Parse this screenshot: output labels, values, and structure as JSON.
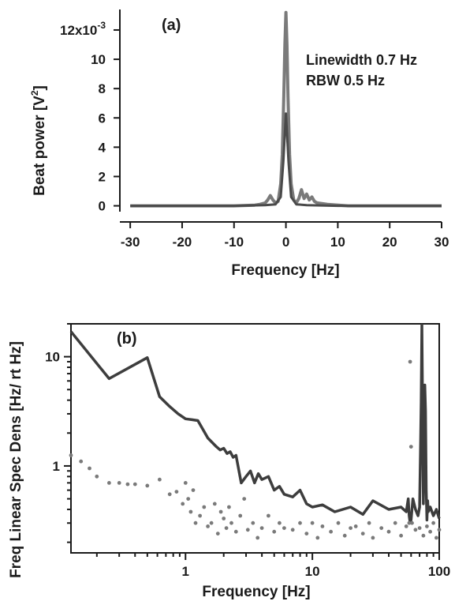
{
  "chart_data": [
    {
      "type": "line",
      "panel_label": "(a)",
      "xlabel": "Frequency [Hz]",
      "ylabel": "Beat power [V",
      "ylabel_sup": "2",
      "ylabel_close": "]",
      "xlim": [
        -32,
        30
      ],
      "ylim": [
        -0.0004,
        0.0134
      ],
      "x_ticks": [
        {
          "value": -30,
          "label": "-30"
        },
        {
          "value": -20,
          "label": "-20"
        },
        {
          "value": -10,
          "label": "-10"
        },
        {
          "value": 0,
          "label": "0"
        },
        {
          "value": 10,
          "label": "10"
        },
        {
          "value": 20,
          "label": "20"
        },
        {
          "value": 30,
          "label": "30"
        }
      ],
      "y_ticks": [
        {
          "value": 0,
          "label": "0"
        },
        {
          "value": 0.002,
          "label": "2"
        },
        {
          "value": 0.004,
          "label": "4"
        },
        {
          "value": 0.006,
          "label": "6"
        },
        {
          "value": 0.008,
          "label": "8"
        },
        {
          "value": 0.01,
          "label": "10"
        },
        {
          "value": 0.012,
          "label": "12x10",
          "sup": "-3"
        }
      ],
      "annotations": [
        "Linewidth 0.7 Hz",
        "RBW 0.5 Hz"
      ],
      "grid": false,
      "series": [
        {
          "color": "#7a7a7a",
          "x": [
            -30,
            -10,
            -6,
            -5,
            -4,
            -3.5,
            -3,
            -2.5,
            -2,
            -1.5,
            -1,
            -0.7,
            -0.4,
            -0.2,
            0,
            0.2,
            0.4,
            0.7,
            1,
            1.5,
            2,
            2.5,
            3,
            3.5,
            4,
            4.5,
            5,
            5.5,
            6,
            8,
            12,
            30
          ],
          "y": [
            0,
            0,
            5e-05,
            0.0001,
            0.0002,
            0.0004,
            0.0007,
            0.0004,
            0.0002,
            0.0003,
            0.0015,
            0.0035,
            0.0075,
            0.011,
            0.0132,
            0.011,
            0.0075,
            0.0035,
            0.0015,
            0.0004,
            0.0002,
            0.0005,
            0.0011,
            0.0005,
            0.0008,
            0.0004,
            0.0006,
            0.0003,
            0.0002,
            0.0001,
            0,
            0
          ]
        },
        {
          "color": "#4a4a4a",
          "x": [
            -30,
            -10,
            -4,
            -2,
            -1,
            -0.5,
            0,
            0.5,
            1,
            2,
            4,
            10,
            30
          ],
          "y": [
            0,
            0,
            5e-05,
            0.0001,
            0.0006,
            0.003,
            0.0063,
            0.003,
            0.0006,
            0.0001,
            5e-05,
            0,
            0
          ]
        }
      ]
    },
    {
      "type": "line",
      "panel_label": "(b)",
      "xlabel": "Frequency [Hz]",
      "ylabel": "Freq Linear Spec Dens [Hz/ rt Hz]",
      "xscale": "log",
      "yscale": "log",
      "xlim": [
        0.125,
        100
      ],
      "ylim": [
        0.16,
        20
      ],
      "x_ticks": [
        {
          "value": 1,
          "label": "1"
        },
        {
          "value": 10,
          "label": "10"
        },
        {
          "value": 100,
          "label": "100"
        }
      ],
      "y_ticks": [
        {
          "value": 1,
          "label": "1"
        },
        {
          "value": 10,
          "label": "10"
        }
      ],
      "grid": false,
      "series": [
        {
          "style": "line",
          "color": "#3d3d3d",
          "x": [
            0.125,
            0.25,
            0.5,
            0.625,
            0.75,
            0.875,
            1.0,
            1.125,
            1.25,
            1.5,
            1.75,
            1.875,
            2.0,
            2.125,
            2.25,
            2.375,
            2.5,
            2.75,
            3.0,
            3.25,
            3.5,
            3.75,
            4.0,
            4.5,
            5.0,
            5.5,
            6.0,
            7.0,
            8.0,
            9.0,
            10,
            12,
            15,
            20,
            25,
            30,
            40,
            50,
            55,
            57,
            58,
            59,
            60,
            62,
            65,
            68,
            70,
            71,
            72,
            73,
            75,
            77,
            78,
            79,
            80,
            81,
            82,
            85,
            90,
            95,
            100
          ],
          "y": [
            17,
            6.3,
            9.8,
            4.3,
            3.5,
            3.0,
            2.7,
            2.65,
            2.6,
            1.8,
            1.5,
            1.4,
            1.45,
            1.3,
            1.35,
            1.2,
            1.25,
            0.7,
            0.8,
            0.9,
            0.7,
            0.85,
            0.75,
            0.8,
            0.6,
            0.65,
            0.55,
            0.52,
            0.6,
            0.45,
            0.42,
            0.44,
            0.38,
            0.42,
            0.36,
            0.48,
            0.4,
            0.42,
            0.38,
            0.5,
            0.35,
            0.3,
            0.32,
            0.5,
            0.4,
            0.35,
            0.42,
            1.2,
            3.8,
            19.5,
            0.45,
            5.5,
            3.2,
            0.6,
            0.32,
            0.48,
            0.38,
            0.42,
            0.35,
            0.4,
            0.33
          ]
        },
        {
          "style": "dots",
          "color": "#7a7a7a",
          "x": [
            0.125,
            0.15,
            0.175,
            0.2,
            0.25,
            0.3,
            0.35,
            0.4,
            0.5,
            0.625,
            0.75,
            0.85,
            0.95,
            1.0,
            1.05,
            1.1,
            1.15,
            1.2,
            1.3,
            1.4,
            1.5,
            1.6,
            1.7,
            1.8,
            1.9,
            2.0,
            2.1,
            2.2,
            2.3,
            2.5,
            2.7,
            2.9,
            3.1,
            3.4,
            3.7,
            4.0,
            4.5,
            5.0,
            5.5,
            6.0,
            7.0,
            8.0,
            9.0,
            10,
            11,
            12,
            14,
            16,
            18,
            20,
            22,
            25,
            28,
            30,
            35,
            40,
            45,
            50,
            55,
            58,
            59,
            60,
            61,
            65,
            70,
            75,
            80,
            85,
            90,
            95,
            100
          ],
          "y": [
            1.25,
            1.1,
            0.95,
            0.8,
            0.7,
            0.7,
            0.68,
            0.68,
            0.66,
            0.75,
            0.55,
            0.58,
            0.45,
            0.7,
            0.5,
            0.38,
            0.6,
            0.3,
            0.35,
            0.42,
            0.28,
            0.3,
            0.45,
            0.24,
            0.38,
            0.33,
            0.27,
            0.42,
            0.3,
            0.25,
            0.35,
            0.5,
            0.26,
            0.3,
            0.22,
            0.27,
            0.35,
            0.25,
            0.3,
            0.27,
            0.26,
            0.3,
            0.24,
            0.3,
            0.22,
            0.28,
            0.25,
            0.3,
            0.23,
            0.27,
            0.28,
            0.24,
            0.3,
            0.22,
            0.27,
            0.25,
            0.3,
            0.23,
            0.28,
            0.3,
            9,
            1.5,
            0.3,
            0.26,
            0.27,
            0.23,
            0.28,
            0.25,
            0.3,
            0.22,
            0.26
          ]
        }
      ]
    }
  ]
}
